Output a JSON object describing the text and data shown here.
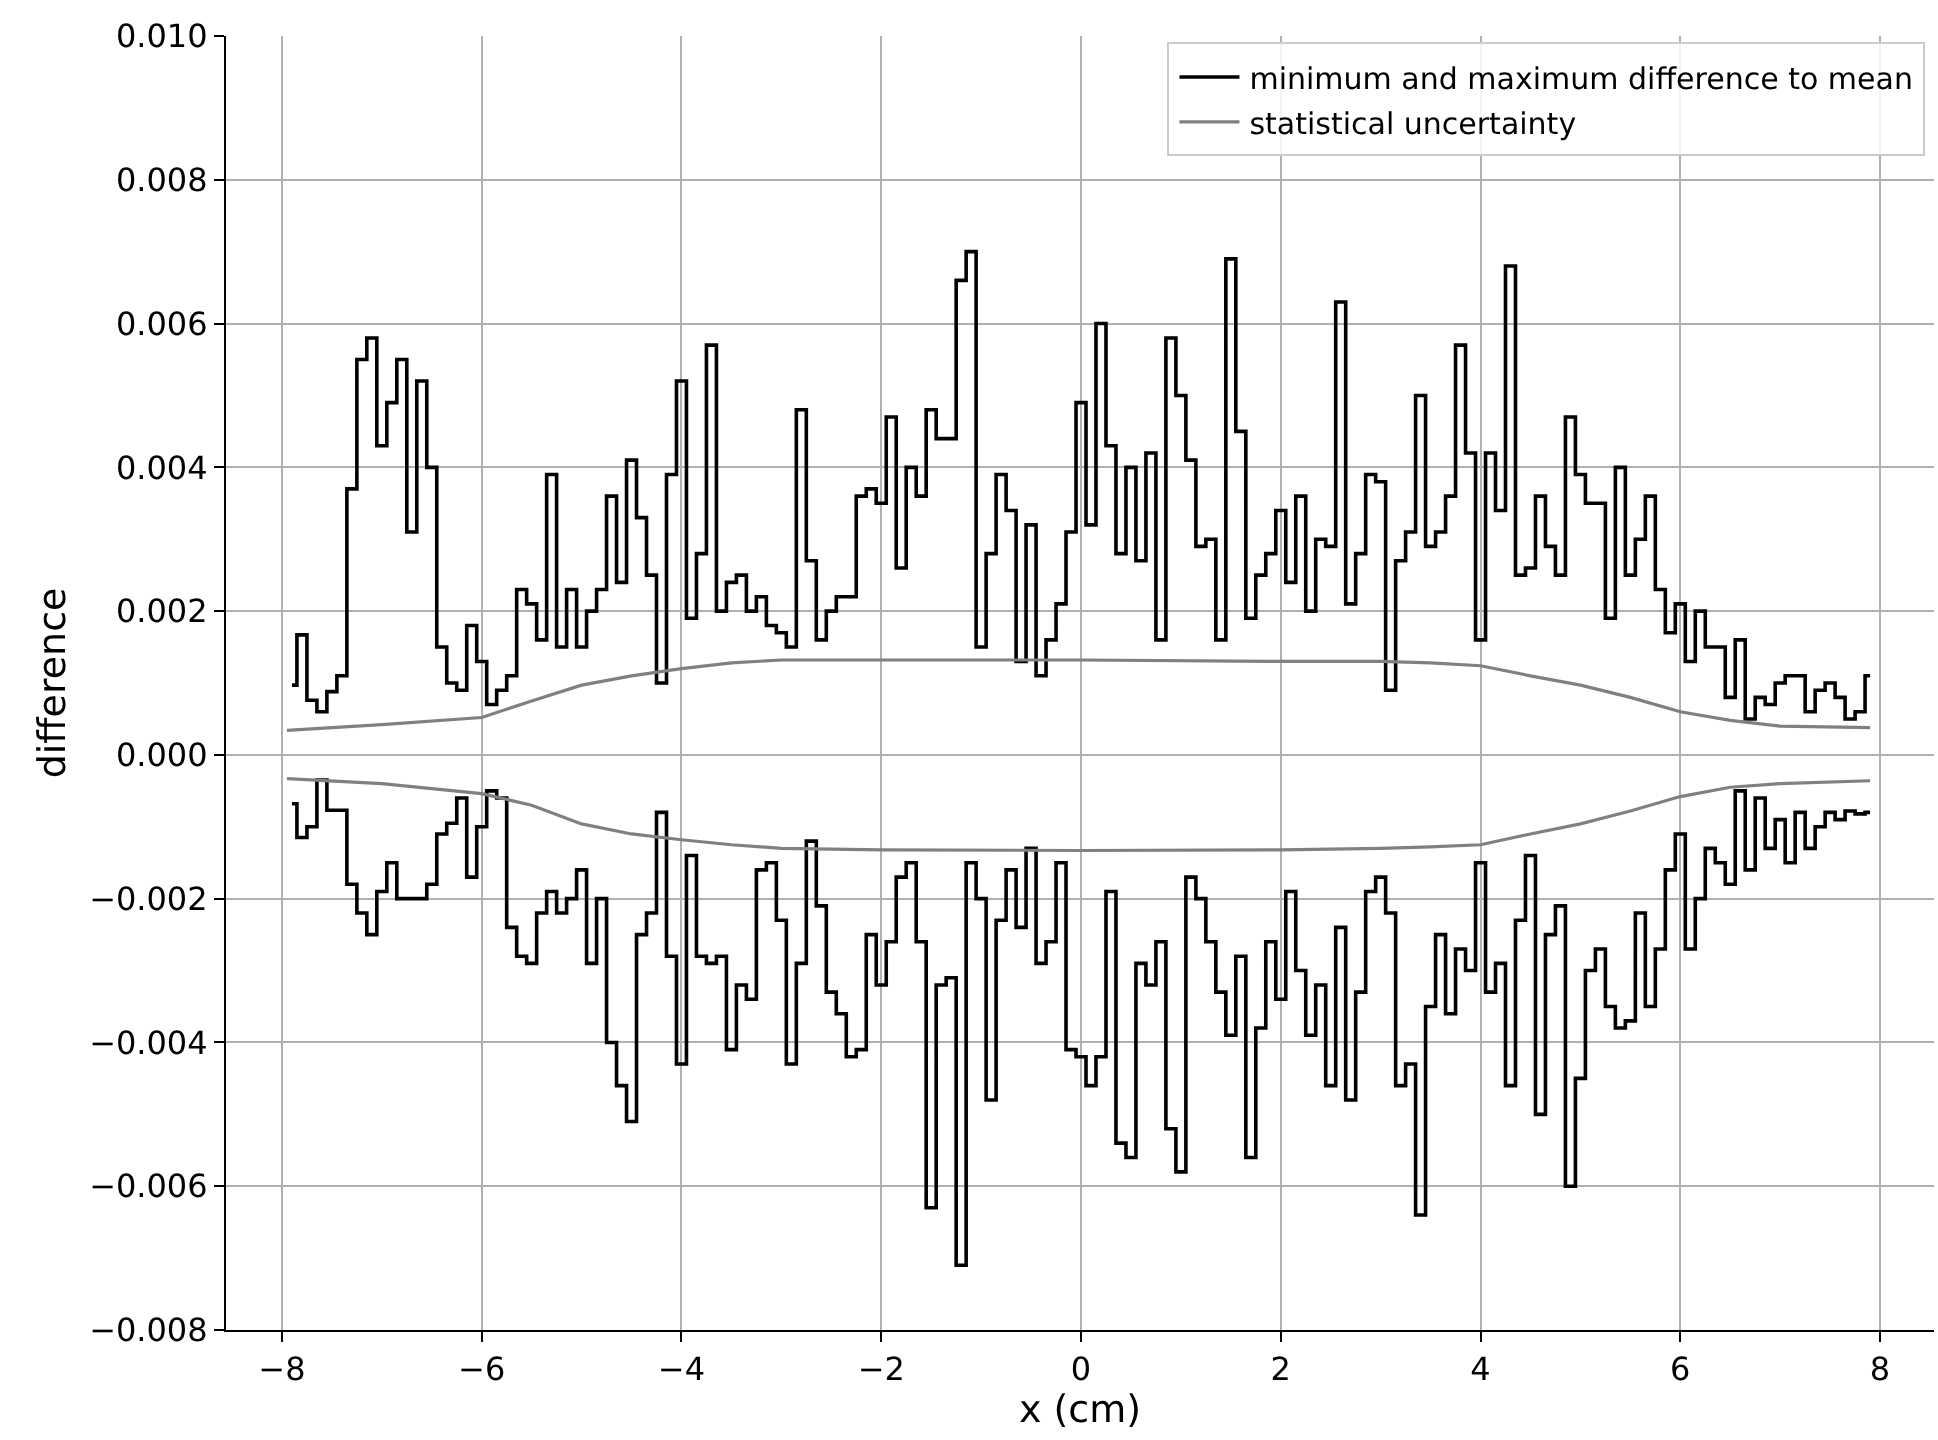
{
  "chart_data": {
    "type": "step",
    "xlabel": "x (cm)",
    "ylabel": "difference",
    "x": [
      -7.9,
      -7.8,
      -7.7,
      -7.6,
      -7.5,
      -7.4,
      -7.3,
      -7.2,
      -7.1,
      -7.0,
      -6.9,
      -6.8,
      -6.7,
      -6.6,
      -6.5,
      -6.4,
      -6.3,
      -6.2,
      -6.1,
      -6.0,
      -5.9,
      -5.8,
      -5.7,
      -5.6,
      -5.5,
      -5.4,
      -5.3,
      -5.2,
      -5.1,
      -5.0,
      -4.9,
      -4.8,
      -4.7,
      -4.6,
      -4.5,
      -4.4,
      -4.3,
      -4.2,
      -4.1,
      -4.0,
      -3.9,
      -3.8,
      -3.7,
      -3.6,
      -3.5,
      -3.4,
      -3.3,
      -3.2,
      -3.1,
      -3.0,
      -2.9,
      -2.8,
      -2.7,
      -2.6,
      -2.5,
      -2.4,
      -2.3,
      -2.2,
      -2.1,
      -2.0,
      -1.9,
      -1.8,
      -1.7,
      -1.6,
      -1.5,
      -1.4,
      -1.3,
      -1.2,
      -1.1,
      -1.0,
      -0.9,
      -0.8,
      -0.7,
      -0.6,
      -0.5,
      -0.4,
      -0.3,
      -0.2,
      -0.1,
      0.0,
      0.1,
      0.2,
      0.3,
      0.4,
      0.5,
      0.6,
      0.7,
      0.8,
      0.9,
      1.0,
      1.1,
      1.2,
      1.3,
      1.4,
      1.5,
      1.6,
      1.7,
      1.8,
      1.9,
      2.0,
      2.1,
      2.2,
      2.3,
      2.4,
      2.5,
      2.6,
      2.7,
      2.8,
      2.9,
      3.0,
      3.1,
      3.2,
      3.3,
      3.4,
      3.5,
      3.6,
      3.7,
      3.8,
      3.9,
      4.0,
      4.1,
      4.2,
      4.3,
      4.4,
      4.5,
      4.6,
      4.7,
      4.8,
      4.9,
      5.0,
      5.1,
      5.2,
      5.3,
      5.4,
      5.5,
      5.6,
      5.7,
      5.8,
      5.9,
      6.0,
      6.1,
      6.2,
      6.3,
      6.4,
      6.5,
      6.6,
      6.7,
      6.8,
      6.9,
      7.0,
      7.1,
      7.2,
      7.3,
      7.4,
      7.5,
      7.6,
      7.7,
      7.8,
      7.9
    ],
    "series": [
      {
        "name": "minimum and maximum difference to mean",
        "color": "#000000",
        "values": [
          0.00097,
          0.00167,
          0.00076,
          0.0006,
          0.00088,
          0.0011,
          0.0037,
          0.0055,
          0.0058,
          0.0043,
          0.0049,
          0.0055,
          0.0031,
          0.0052,
          0.004,
          0.0015,
          0.001,
          0.0009,
          0.0018,
          0.0013,
          0.0007,
          0.0009,
          0.0011,
          0.0023,
          0.0021,
          0.0016,
          0.0039,
          0.0015,
          0.0023,
          0.0015,
          0.002,
          0.0023,
          0.0036,
          0.0024,
          0.0041,
          0.0033,
          0.0025,
          0.001,
          0.0039,
          0.0052,
          0.0019,
          0.0028,
          0.0057,
          0.002,
          0.0024,
          0.0025,
          0.002,
          0.0022,
          0.0018,
          0.0017,
          0.0015,
          0.0048,
          0.0027,
          0.0016,
          0.002,
          0.0022,
          0.0022,
          0.0036,
          0.0037,
          0.0035,
          0.0047,
          0.0026,
          0.004,
          0.0036,
          0.0048,
          0.0044,
          0.0044,
          0.0066,
          0.007,
          0.0015,
          0.0028,
          0.0039,
          0.0034,
          0.0013,
          0.0032,
          0.0011,
          0.0016,
          0.0021,
          0.0031,
          0.0049,
          0.0032,
          0.006,
          0.0043,
          0.0028,
          0.004,
          0.0027,
          0.0042,
          0.0016,
          0.0058,
          0.005,
          0.0041,
          0.0029,
          0.003,
          0.0016,
          0.0069,
          0.0045,
          0.0019,
          0.0025,
          0.0028,
          0.0034,
          0.0024,
          0.0036,
          0.002,
          0.003,
          0.0029,
          0.0063,
          0.0021,
          0.0028,
          0.0039,
          0.0038,
          0.0009,
          0.0027,
          0.0031,
          0.005,
          0.0029,
          0.0031,
          0.0036,
          0.0057,
          0.0042,
          0.0016,
          0.0042,
          0.0034,
          0.0068,
          0.0025,
          0.0026,
          0.0036,
          0.0029,
          0.0025,
          0.0047,
          0.0039,
          0.0035,
          0.0035,
          0.0019,
          0.004,
          0.0025,
          0.003,
          0.0036,
          0.0023,
          0.0017,
          0.0021,
          0.0013,
          0.002,
          0.0015,
          0.0015,
          0.0008,
          0.0016,
          0.0005,
          0.0008,
          0.0007,
          0.001,
          0.0011,
          0.0011,
          0.0006,
          0.0009,
          0.001,
          0.0008,
          0.0005,
          0.0006,
          0.0011
        ]
      },
      {
        "color": "#000000",
        "values": [
          -0.00068,
          -0.00115,
          -0.001,
          -0.00035,
          -0.00077,
          -0.00077,
          -0.0018,
          -0.0022,
          -0.0025,
          -0.0019,
          -0.0015,
          -0.002,
          -0.002,
          -0.002,
          -0.0018,
          -0.0011,
          -0.00095,
          -0.0006,
          -0.0017,
          -0.001,
          -0.0005,
          -0.0006,
          -0.0024,
          -0.0028,
          -0.0029,
          -0.0022,
          -0.0019,
          -0.0022,
          -0.002,
          -0.0016,
          -0.0029,
          -0.002,
          -0.004,
          -0.0046,
          -0.0051,
          -0.0025,
          -0.0022,
          -0.0008,
          -0.0028,
          -0.0043,
          -0.0014,
          -0.0028,
          -0.0029,
          -0.0028,
          -0.0041,
          -0.0032,
          -0.0034,
          -0.0016,
          -0.0015,
          -0.0023,
          -0.0043,
          -0.0029,
          -0.0012,
          -0.0021,
          -0.0033,
          -0.0036,
          -0.0042,
          -0.0041,
          -0.0025,
          -0.0032,
          -0.0026,
          -0.0017,
          -0.0015,
          -0.0026,
          -0.0063,
          -0.0032,
          -0.0031,
          -0.0071,
          -0.0015,
          -0.002,
          -0.0048,
          -0.0023,
          -0.0016,
          -0.0024,
          -0.0013,
          -0.0029,
          -0.0026,
          -0.0015,
          -0.0041,
          -0.0042,
          -0.0046,
          -0.0042,
          -0.0019,
          -0.0054,
          -0.0056,
          -0.0029,
          -0.0032,
          -0.0026,
          -0.0052,
          -0.0058,
          -0.0017,
          -0.002,
          -0.0026,
          -0.0033,
          -0.0039,
          -0.0028,
          -0.0056,
          -0.0038,
          -0.0026,
          -0.0034,
          -0.0019,
          -0.003,
          -0.0039,
          -0.0032,
          -0.0046,
          -0.0024,
          -0.0048,
          -0.0033,
          -0.0019,
          -0.0017,
          -0.0022,
          -0.0046,
          -0.0043,
          -0.0064,
          -0.0035,
          -0.0025,
          -0.0036,
          -0.0027,
          -0.003,
          -0.0015,
          -0.0033,
          -0.0029,
          -0.0046,
          -0.0023,
          -0.0014,
          -0.005,
          -0.0025,
          -0.0021,
          -0.006,
          -0.0045,
          -0.003,
          -0.0027,
          -0.0035,
          -0.0038,
          -0.0037,
          -0.0022,
          -0.0035,
          -0.0027,
          -0.0016,
          -0.0011,
          -0.0027,
          -0.002,
          -0.0013,
          -0.0015,
          -0.0018,
          -0.0005,
          -0.0016,
          -0.0006,
          -0.0013,
          -0.0009,
          -0.0015,
          -0.0008,
          -0.0013,
          -0.001,
          -0.0008,
          -0.0009,
          -0.00078,
          -0.00082,
          -0.0008
        ]
      },
      {
        "name": "statistical uncertainty",
        "type": "line",
        "color": "#808080",
        "x": [
          -7.95,
          -7,
          -6,
          -5.5,
          -5,
          -4.5,
          -4,
          -3.5,
          -3,
          -2,
          0,
          2,
          3,
          3.5,
          4,
          4.5,
          5,
          5.5,
          6,
          6.5,
          7,
          7.9
        ],
        "values": [
          0.00034,
          0.00042,
          0.00052,
          0.00075,
          0.00097,
          0.0011,
          0.0012,
          0.00128,
          0.00132,
          0.00132,
          0.00132,
          0.0013,
          0.0013,
          0.00128,
          0.00124,
          0.0011,
          0.00097,
          0.0008,
          0.0006,
          0.00048,
          0.0004,
          0.00038
        ]
      },
      {
        "type": "line",
        "color": "#808080",
        "x": [
          -7.95,
          -7,
          -6,
          -5.5,
          -5,
          -4.5,
          -4,
          -3.5,
          -3,
          -2,
          0,
          2,
          3,
          3.5,
          4,
          4.5,
          5,
          5.5,
          6,
          6.5,
          7,
          7.9
        ],
        "values": [
          -0.00033,
          -0.0004,
          -0.00054,
          -0.0007,
          -0.00096,
          -0.0011,
          -0.00118,
          -0.00125,
          -0.0013,
          -0.00132,
          -0.00133,
          -0.00132,
          -0.0013,
          -0.00128,
          -0.00125,
          -0.0011,
          -0.00096,
          -0.00078,
          -0.00058,
          -0.00045,
          -0.0004,
          -0.00036
        ]
      }
    ],
    "xlim": [
      -8.56,
      8.54
    ],
    "xticks": [
      {
        "value": -8,
        "label": "−8"
      },
      {
        "value": -6,
        "label": "−6"
      },
      {
        "value": -4,
        "label": "−4"
      },
      {
        "value": -2,
        "label": "−2"
      },
      0,
      2,
      4,
      6,
      8
    ],
    "ylim": [
      -0.008,
      0.01
    ],
    "yticks": [
      {
        "value": -0.008,
        "label": "−0.008"
      },
      {
        "value": -0.006,
        "label": "−0.006"
      },
      {
        "value": -0.004,
        "label": "−0.004"
      },
      {
        "value": -0.002,
        "label": "−0.002"
      },
      {
        "value": 0,
        "label": "0.000"
      },
      {
        "value": 0.002,
        "label": "0.002"
      },
      {
        "value": 0.004,
        "label": "0.004"
      },
      {
        "value": 0.006,
        "label": "0.006"
      },
      {
        "value": 0.008,
        "label": "0.008"
      },
      {
        "value": 0.01,
        "label": "0.010"
      }
    ],
    "grid": true,
    "legend": "top right"
  }
}
